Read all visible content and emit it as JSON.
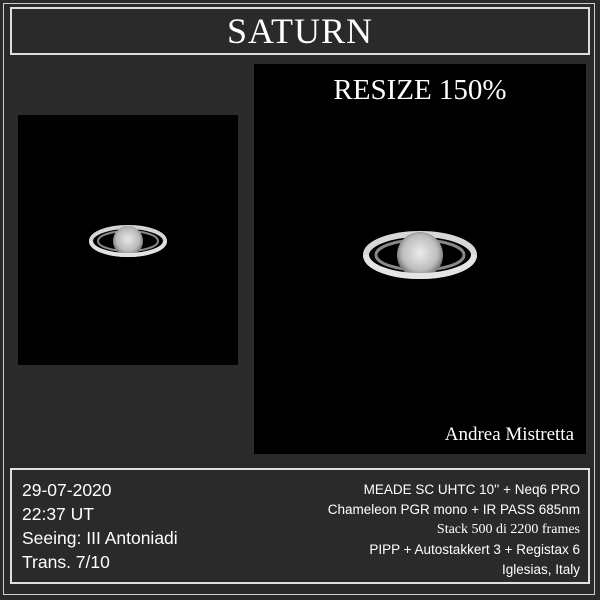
{
  "title": "SATURN",
  "image_labels": {
    "resize": "RESIZE 150%",
    "author": "Andrea Mistretta"
  },
  "info_left": [
    "29-07-2020",
    "22:37 UT",
    "Seeing: III Antoniadi",
    "Trans. 7/10"
  ],
  "info_right": [
    "MEADE SC UHTC 10'' + Neq6 PRO",
    "Chameleon PGR mono + IR PASS 685nm",
    "Stack 500 di 2200 frames",
    "PIPP + Autostakkert 3 + Registax 6",
    "Iglesias, Italy"
  ]
}
